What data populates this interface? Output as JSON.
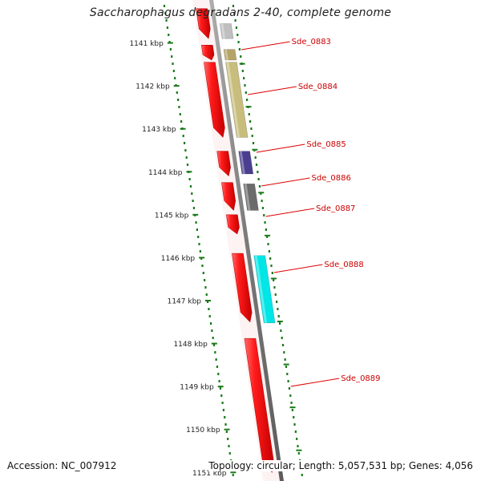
{
  "title": "Saccharophagus degradans 2-40, complete genome",
  "footer": {
    "accession": "Accession: NC_007912",
    "stats": "Topology: circular; Length: 5,057,531 bp; Genes: 4,056"
  },
  "genome_map": {
    "visible_range_kbp": [
      1140.0,
      1151.2
    ],
    "ticks": [
      {
        "value": 1141,
        "label": "1141 kbp"
      },
      {
        "value": 1142,
        "label": "1142 kbp"
      },
      {
        "value": 1143,
        "label": "1143 kbp"
      },
      {
        "value": 1144,
        "label": "1144 kbp"
      },
      {
        "value": 1145,
        "label": "1145 kbp"
      },
      {
        "value": 1146,
        "label": "1146 kbp"
      },
      {
        "value": 1147,
        "label": "1147 kbp"
      },
      {
        "value": 1148,
        "label": "1148 kbp"
      },
      {
        "value": 1149,
        "label": "1149 kbp"
      },
      {
        "value": 1150,
        "label": "1150 kbp"
      },
      {
        "value": 1151,
        "label": "1151 kbp"
      }
    ],
    "genes": [
      {
        "start": 1140.55,
        "end": 1140.9,
        "color": "#bfbfbf",
        "label": ""
      },
      {
        "start": 1141.15,
        "end": 1141.4,
        "color": "#b5a467",
        "label": "Sde_0883"
      },
      {
        "start": 1141.45,
        "end": 1143.2,
        "color": "#c8bd7d",
        "label": "Sde_0884"
      },
      {
        "start": 1143.52,
        "end": 1144.05,
        "color": "#4a3f8f",
        "label": "Sde_0885"
      },
      {
        "start": 1144.28,
        "end": 1144.9,
        "color": "#6b6b6b",
        "label": "Sde_0886"
      },
      {
        "start": 1145.0,
        "end": 1145.0,
        "color": "#ffffff",
        "label": "Sde_0887"
      },
      {
        "start": 1145.95,
        "end": 1147.52,
        "color": "#00e5e5",
        "label": "Sde_0888"
      },
      {
        "start": 1148.0,
        "end": 1151.2,
        "color": "#ffffff",
        "label": "Sde_0889"
      }
    ],
    "cds_arrows": [
      {
        "start": 1140.2,
        "end": 1140.9
      },
      {
        "start": 1141.05,
        "end": 1141.4
      },
      {
        "start": 1141.45,
        "end": 1143.2
      },
      {
        "start": 1143.52,
        "end": 1144.1
      },
      {
        "start": 1144.25,
        "end": 1144.9
      },
      {
        "start": 1145.0,
        "end": 1145.45
      },
      {
        "start": 1145.9,
        "end": 1147.5
      },
      {
        "start": 1147.88,
        "end": 1151.0
      }
    ],
    "colors": {
      "cds": "#e00000",
      "backbone": "#808080",
      "tick": "#1a7a1a",
      "callout": "#dd0000",
      "label_text": "#cc0000"
    }
  }
}
